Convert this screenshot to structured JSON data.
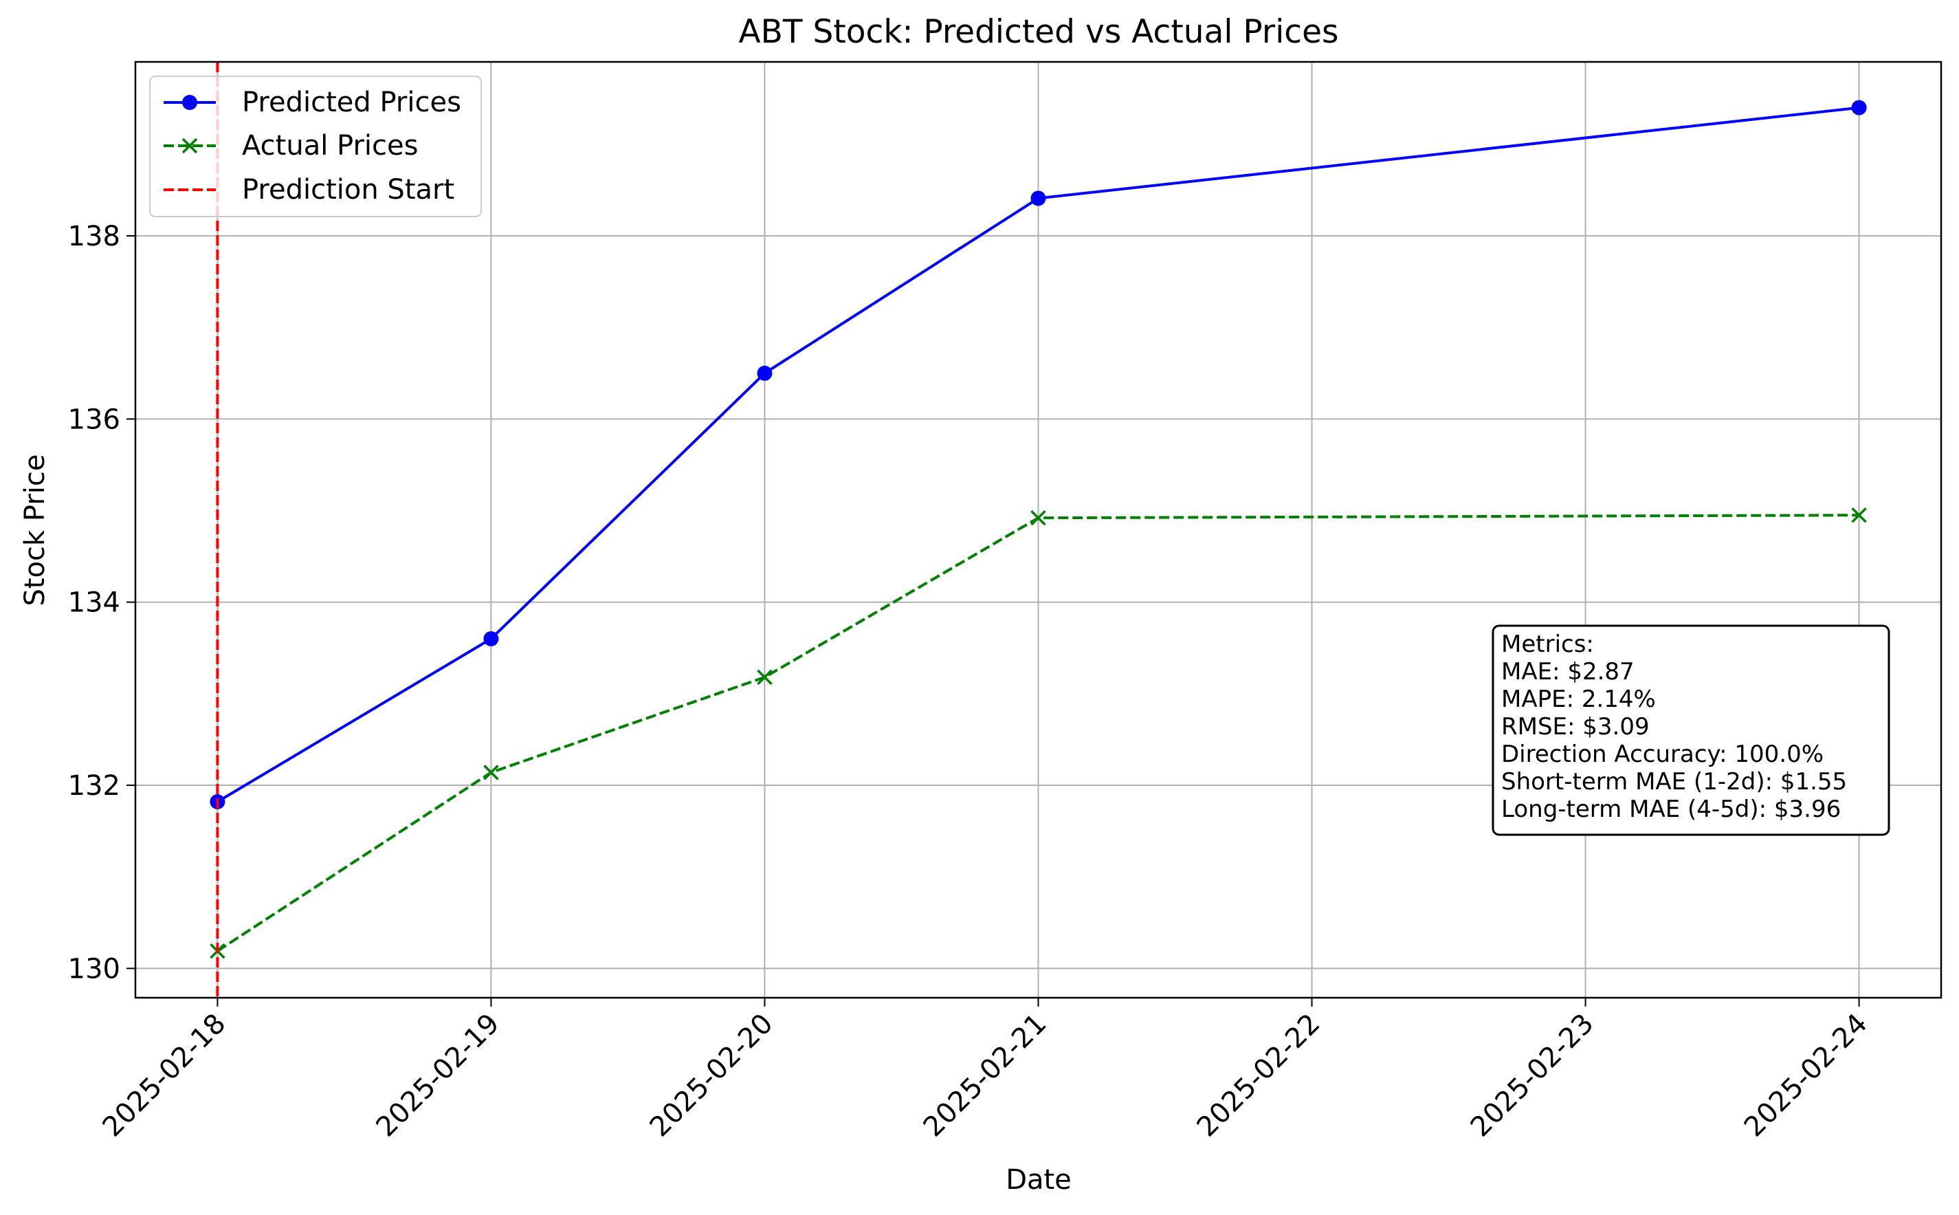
{
  "chart_data": {
    "type": "line",
    "title": "ABT Stock: Predicted vs Actual Prices",
    "xlabel": "Date",
    "ylabel": "Stock Price",
    "x_ticks": [
      "2025-02-18",
      "2025-02-19",
      "2025-02-20",
      "2025-02-21",
      "2025-02-22",
      "2025-02-23",
      "2025-02-24"
    ],
    "xlim": [
      "2025-02-17.7",
      "2025-02-24.3"
    ],
    "y_ticks": [
      130,
      132,
      134,
      136,
      138
    ],
    "ylim": [
      129.68,
      139.9
    ],
    "grid": true,
    "legend_position": "upper left",
    "series": [
      {
        "name": "Predicted Prices",
        "color": "#0000ff",
        "line_style": "solid",
        "marker": "circle",
        "x": [
          "2025-02-18",
          "2025-02-19",
          "2025-02-20",
          "2025-02-21",
          "2025-02-24"
        ],
        "values": [
          131.82,
          133.6,
          136.5,
          138.41,
          139.4
        ]
      },
      {
        "name": "Actual Prices",
        "color": "#008000",
        "line_style": "dashed",
        "marker": "x",
        "x": [
          "2025-02-18",
          "2025-02-19",
          "2025-02-20",
          "2025-02-21",
          "2025-02-24"
        ],
        "values": [
          130.19,
          132.14,
          133.18,
          134.92,
          134.95
        ]
      }
    ],
    "vertical_line": {
      "name": "Prediction Start",
      "x": "2025-02-18",
      "color": "#ff0000",
      "line_style": "dashed"
    },
    "annotation_box": {
      "lines": [
        "Metrics:",
        "MAE: $2.87",
        "MAPE: 2.14%",
        "RMSE: $3.09",
        "Direction Accuracy: 100.0%",
        "Short-term MAE (1-2d): $1.55",
        "Long-term MAE (4-5d): $3.96"
      ],
      "position": "right"
    }
  }
}
